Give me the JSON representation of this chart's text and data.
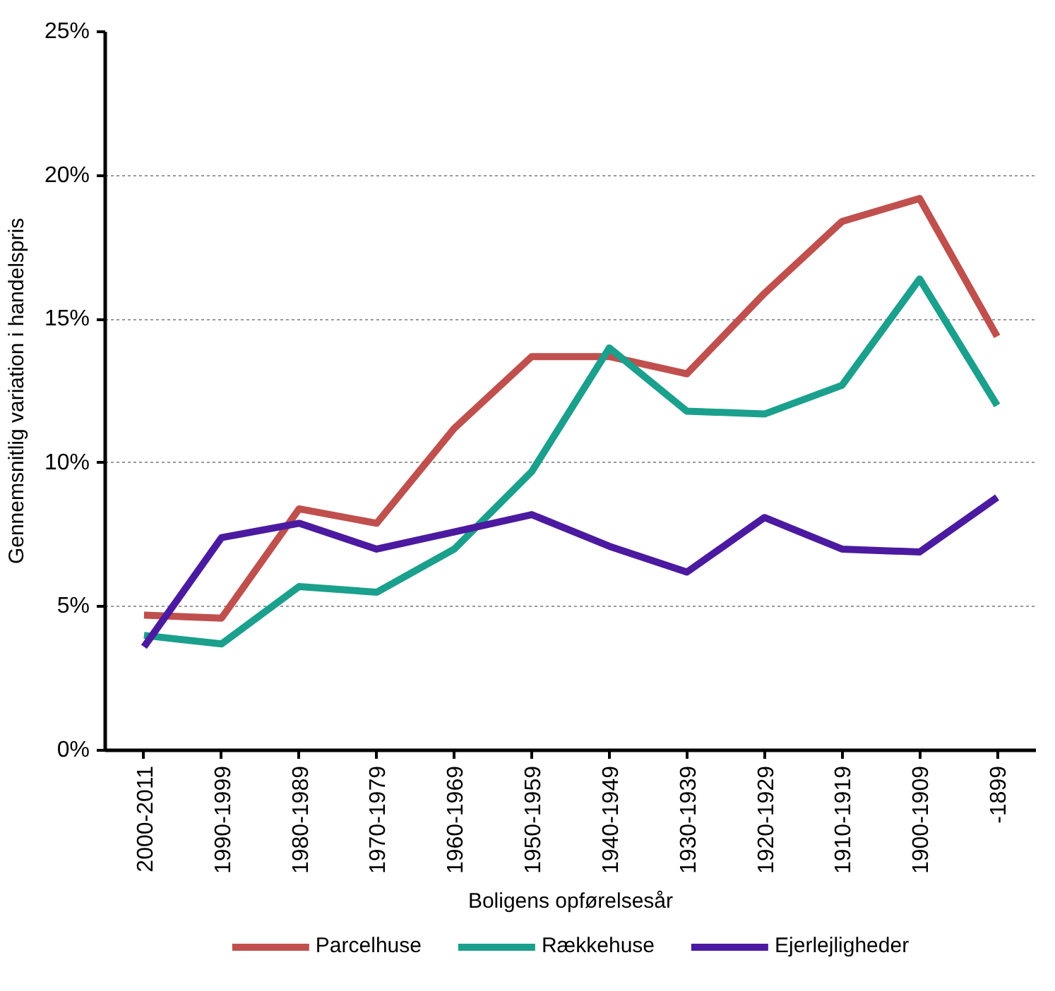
{
  "chart_data": {
    "type": "line",
    "xlabel": "Boligens opførelsesår",
    "ylabel": "Gennemsnitlig variation i handelspris",
    "categories": [
      "2000-2011",
      "1990-1999",
      "1980-1989",
      "1970-1979",
      "1960-1969",
      "1950-1959",
      "1940-1949",
      "1930-1939",
      "1920-1929",
      "1910-1919",
      "1900-1909",
      "-1899"
    ],
    "series": [
      {
        "name": "Parcelhuse",
        "color": "#c0504d",
        "values": [
          4.7,
          4.6,
          8.4,
          7.9,
          11.2,
          13.7,
          13.7,
          13.1,
          15.9,
          18.4,
          19.2,
          14.4
        ]
      },
      {
        "name": "Rækkehuse",
        "color": "#1aa08c",
        "values": [
          4.0,
          3.7,
          5.7,
          5.5,
          7.0,
          9.7,
          14.0,
          11.8,
          11.7,
          12.7,
          16.4,
          12.0
        ]
      },
      {
        "name": "Ejerlejligheder",
        "color": "#4b1aa0",
        "values": [
          3.6,
          7.4,
          7.9,
          7.0,
          7.6,
          8.2,
          7.1,
          6.2,
          8.1,
          7.0,
          6.9,
          8.8
        ]
      }
    ],
    "ylim": [
      0,
      25
    ],
    "yticks": [
      {
        "value": 0,
        "label": "0%"
      },
      {
        "value": 5,
        "label": "5%"
      },
      {
        "value": 10,
        "label": "10%"
      },
      {
        "value": 15,
        "label": "15%"
      },
      {
        "value": 20,
        "label": "20%"
      },
      {
        "value": 25,
        "label": "25%"
      }
    ],
    "grid": "y",
    "legend": "bottom",
    "marker": "none",
    "line_style": "solid"
  }
}
